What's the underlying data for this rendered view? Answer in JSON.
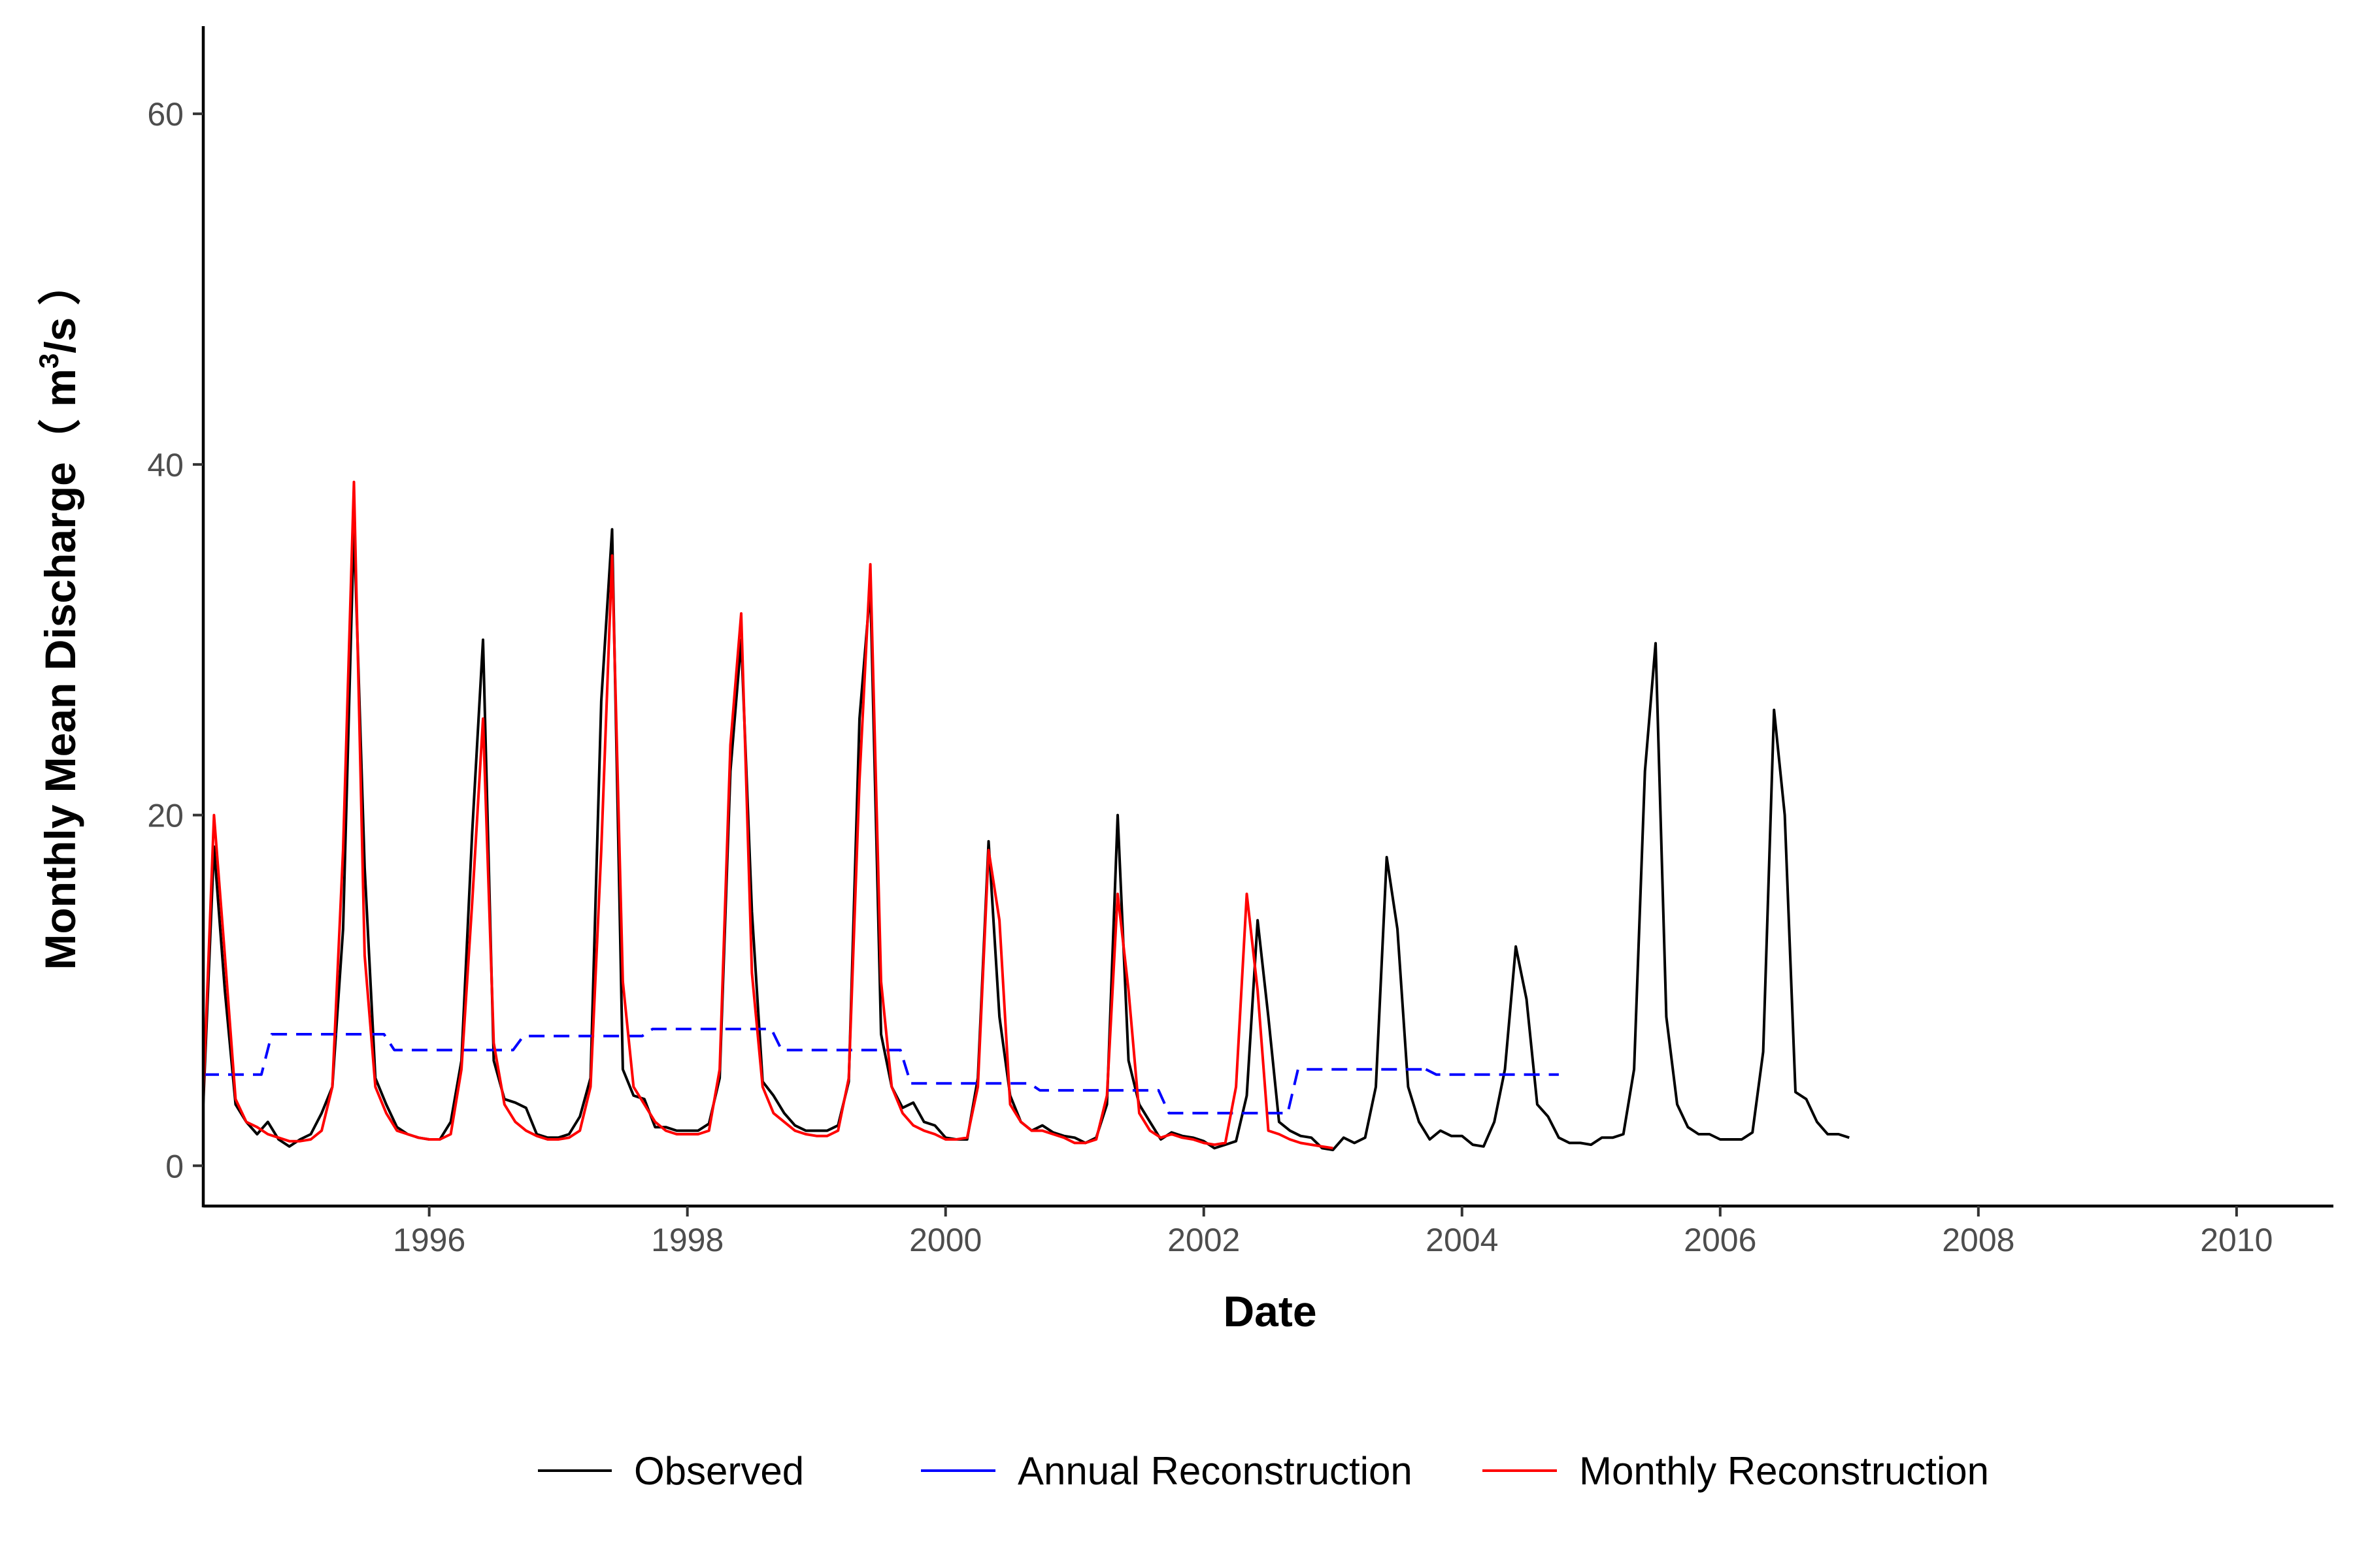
{
  "chart_data": {
    "type": "line",
    "xlabel": "Date",
    "ylabel_main": "Monthly Mean Discharge（ m",
    "ylabel_sup": "3",
    "ylabel_end": "/s ）",
    "xlim": [
      1994.25,
      2010.75
    ],
    "ylim": [
      -2.3,
      65
    ],
    "x_ticks": [
      1996,
      1998,
      2000,
      2002,
      2004,
      2006,
      2008,
      2010
    ],
    "y_ticks": [
      0,
      20,
      40,
      60
    ],
    "grid": false,
    "legend_position": "bottom",
    "colors": {
      "observed": "#000000",
      "annual": "#0000FF",
      "monthly": "#FF0000"
    },
    "series": [
      {
        "name": "Observed",
        "style": "solid",
        "x": [
          1994.25,
          1994.333,
          1994.417,
          1994.5,
          1994.583,
          1994.667,
          1994.75,
          1994.833,
          1994.917,
          1995.0,
          1995.083,
          1995.167,
          1995.25,
          1995.333,
          1995.417,
          1995.5,
          1995.583,
          1995.667,
          1995.75,
          1995.833,
          1995.917,
          1996.0,
          1996.083,
          1996.167,
          1996.25,
          1996.333,
          1996.417,
          1996.5,
          1996.583,
          1996.667,
          1996.75,
          1996.833,
          1996.917,
          1997.0,
          1997.083,
          1997.167,
          1997.25,
          1997.333,
          1997.417,
          1997.5,
          1997.583,
          1997.667,
          1997.75,
          1997.833,
          1997.917,
          1998.0,
          1998.083,
          1998.167,
          1998.25,
          1998.333,
          1998.417,
          1998.5,
          1998.583,
          1998.667,
          1998.75,
          1998.833,
          1998.917,
          1999.0,
          1999.083,
          1999.167,
          1999.25,
          1999.333,
          1999.417,
          1999.5,
          1999.583,
          1999.667,
          1999.75,
          1999.833,
          1999.917,
          2000.0,
          2000.083,
          2000.167,
          2000.25,
          2000.333,
          2000.417,
          2000.5,
          2000.583,
          2000.667,
          2000.75,
          2000.833,
          2000.917,
          2001.0,
          2001.083,
          2001.167,
          2001.25,
          2001.333,
          2001.417,
          2001.5,
          2001.583,
          2001.667,
          2001.75,
          2001.833,
          2001.917,
          2002.0,
          2002.083,
          2002.167,
          2002.25,
          2002.333,
          2002.417,
          2002.5,
          2002.583,
          2002.667,
          2002.75,
          2002.833,
          2002.917,
          2003.0,
          2003.083,
          2003.167,
          2003.25,
          2003.333,
          2003.417,
          2003.5,
          2003.583,
          2003.667,
          2003.75,
          2003.833,
          2003.917,
          2004.0,
          2004.083,
          2004.167,
          2004.25,
          2004.333,
          2004.417,
          2004.5,
          2004.583,
          2004.667,
          2004.75,
          2004.833,
          2004.917,
          2005.0,
          2005.083,
          2005.167,
          2005.25,
          2005.333,
          2005.417,
          2005.5,
          2005.583,
          2005.667,
          2005.75,
          2005.833,
          2005.917,
          2006.0,
          2006.083,
          2006.167,
          2006.25,
          2006.333,
          2006.417,
          2006.5,
          2006.583,
          2006.667,
          2006.75,
          2006.833,
          2006.917,
          2007.0
        ],
        "y": [
          3.5,
          18.2,
          10.0,
          3.5,
          2.5,
          1.8,
          2.5,
          1.5,
          1.1,
          1.5,
          1.8,
          3.0,
          4.5,
          13.5,
          36.5,
          17.0,
          5.0,
          3.5,
          2.2,
          1.8,
          1.6,
          1.5,
          1.5,
          2.5,
          6.0,
          19.0,
          30.0,
          6.0,
          3.8,
          3.6,
          3.3,
          1.8,
          1.6,
          1.6,
          1.8,
          2.8,
          5.0,
          26.5,
          36.3,
          5.5,
          4.0,
          3.8,
          2.2,
          2.2,
          2.0,
          2.0,
          2.0,
          2.4,
          5.0,
          22.5,
          30.0,
          14.5,
          4.8,
          4.0,
          3.0,
          2.3,
          2.0,
          2.0,
          2.0,
          2.3,
          4.8,
          25.5,
          33.0,
          7.5,
          4.5,
          3.3,
          3.6,
          2.5,
          2.3,
          1.6,
          1.5,
          1.5,
          5.0,
          18.5,
          8.5,
          4.0,
          2.5,
          2.0,
          2.3,
          1.9,
          1.7,
          1.6,
          1.3,
          1.6,
          3.5,
          20.0,
          6.0,
          3.5,
          2.5,
          1.5,
          1.9,
          1.7,
          1.6,
          1.4,
          1.0,
          1.2,
          1.4,
          4.0,
          14.0,
          8.5,
          2.5,
          2.0,
          1.7,
          1.6,
          1.0,
          0.9,
          1.6,
          1.3,
          1.6,
          4.5,
          17.6,
          13.5,
          4.5,
          2.5,
          1.5,
          2.0,
          1.7,
          1.7,
          1.2,
          1.1,
          2.5,
          5.5,
          12.5,
          9.5,
          3.5,
          2.8,
          1.6,
          1.3,
          1.3,
          1.2,
          1.6,
          1.6,
          1.8,
          5.5,
          22.5,
          29.8,
          8.5,
          3.5,
          2.2,
          1.8,
          1.8,
          1.5,
          1.5,
          1.5,
          1.9,
          6.5,
          26.0,
          20.0,
          4.2,
          3.8,
          2.5,
          1.8,
          1.8,
          1.6
        ]
      },
      {
        "name": "Annual Reconstruction",
        "style": "dashed",
        "x": [
          1994.25,
          1994.7,
          1994.78,
          1995.65,
          1995.73,
          1996.65,
          1996.73,
          1997.65,
          1997.73,
          1998.65,
          1998.73,
          1999.65,
          1999.73,
          2000.65,
          2000.73,
          2001.65,
          2001.73,
          2002.65,
          2002.73,
          2003.72
        ],
        "y": [
          5.2,
          5.2,
          7.5,
          7.5,
          6.6,
          6.6,
          7.4,
          7.4,
          7.8,
          7.8,
          6.6,
          6.6,
          4.7,
          4.7,
          4.3,
          4.3,
          3.0,
          3.0,
          5.5,
          5.5
        ]
      },
      {
        "name": "Annual Reconstruction",
        "style": "dashed",
        "x": [
          2003.72,
          2003.8,
          2004.75
        ],
        "y": [
          5.5,
          5.2,
          5.2
        ]
      },
      {
        "name": "Monthly Reconstruction",
        "style": "solid",
        "x": [
          1994.25,
          1994.333,
          1994.417,
          1994.5,
          1994.583,
          1994.667,
          1994.75,
          1994.833,
          1994.917,
          1995.0,
          1995.083,
          1995.167,
          1995.25,
          1995.333,
          1995.417,
          1995.5,
          1995.583,
          1995.667,
          1995.75,
          1995.833,
          1995.917,
          1996.0,
          1996.083,
          1996.167,
          1996.25,
          1996.333,
          1996.417,
          1996.5,
          1996.583,
          1996.667,
          1996.75,
          1996.833,
          1996.917,
          1997.0,
          1997.083,
          1997.167,
          1997.25,
          1997.333,
          1997.417,
          1997.5,
          1997.583,
          1997.667,
          1997.75,
          1997.833,
          1997.917,
          1998.0,
          1998.083,
          1998.167,
          1998.25,
          1998.333,
          1998.417,
          1998.5,
          1998.583,
          1998.667,
          1998.75,
          1998.833,
          1998.917,
          1999.0,
          1999.083,
          1999.167,
          1999.25,
          1999.333,
          1999.417,
          1999.5,
          1999.583,
          1999.667,
          1999.75,
          1999.833,
          1999.917,
          2000.0,
          2000.083,
          2000.167,
          2000.25,
          2000.333,
          2000.417,
          2000.5,
          2000.583,
          2000.667,
          2000.75,
          2000.833,
          2000.917,
          2001.0,
          2001.083,
          2001.167,
          2001.25,
          2001.333,
          2001.417,
          2001.5,
          2001.583,
          2001.667,
          2001.75,
          2001.833,
          2001.917,
          2002.0,
          2002.083,
          2002.167,
          2002.25,
          2002.333,
          2002.417,
          2002.5,
          2002.583,
          2002.667,
          2002.75,
          2002.833,
          2002.917,
          2003.0
        ],
        "y": [
          4.0,
          20.0,
          12.0,
          3.8,
          2.5,
          2.2,
          1.8,
          1.6,
          1.4,
          1.4,
          1.5,
          2.0,
          4.5,
          18.0,
          39.0,
          12.0,
          4.5,
          3.0,
          2.0,
          1.8,
          1.6,
          1.5,
          1.5,
          1.8,
          5.5,
          15.0,
          25.5,
          7.0,
          3.5,
          2.5,
          2.0,
          1.7,
          1.5,
          1.5,
          1.6,
          2.0,
          4.5,
          18.0,
          34.8,
          10.5,
          4.5,
          3.5,
          2.5,
          2.0,
          1.8,
          1.8,
          1.8,
          2.0,
          5.5,
          24.0,
          31.5,
          11.0,
          4.5,
          3.0,
          2.5,
          2.0,
          1.8,
          1.7,
          1.7,
          2.0,
          5.0,
          22.0,
          34.3,
          10.5,
          4.5,
          3.0,
          2.3,
          2.0,
          1.8,
          1.5,
          1.5,
          1.6,
          4.5,
          18.0,
          14.0,
          3.5,
          2.5,
          2.0,
          2.0,
          1.8,
          1.6,
          1.3,
          1.3,
          1.5,
          4.0,
          15.5,
          10.0,
          3.0,
          2.0,
          1.6,
          1.8,
          1.6,
          1.5,
          1.3,
          1.2,
          1.3,
          4.5,
          15.5,
          10.0,
          2.0,
          1.8,
          1.5,
          1.3,
          1.2,
          1.1,
          1.0
        ]
      }
    ],
    "legend": [
      {
        "label": "Observed",
        "color": "#000000"
      },
      {
        "label": "Annual Reconstruction",
        "color": "#0000FF"
      },
      {
        "label": "Monthly Reconstruction",
        "color": "#FF0000"
      }
    ]
  }
}
